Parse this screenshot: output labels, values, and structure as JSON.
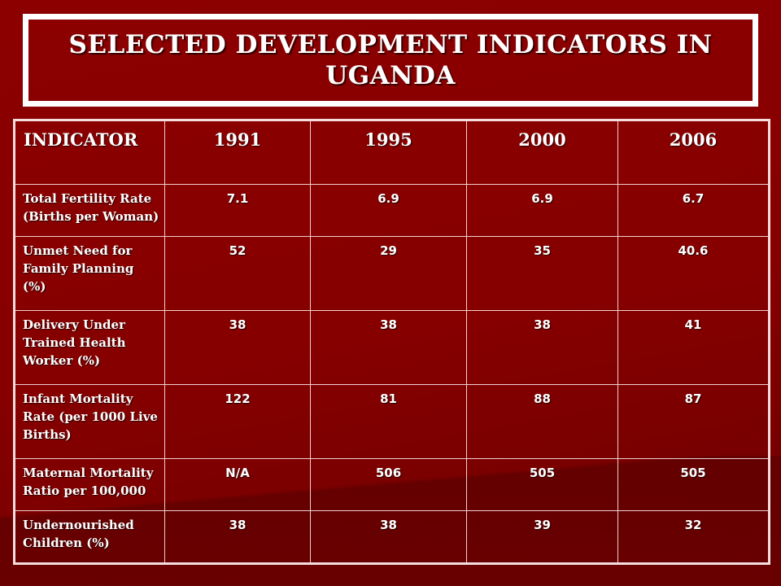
{
  "title": "SELECTED DEVELOPMENT INDICATORS IN UGANDA",
  "table": {
    "headers": [
      "INDICATOR",
      "1991",
      "1995",
      "2000",
      "2006"
    ],
    "rows": [
      {
        "label": "Total Fertility Rate (Births per Woman)",
        "values": [
          "7.1",
          "6.9",
          "6.9",
          "6.7"
        ]
      },
      {
        "label": "Unmet Need for Family Planning (%)",
        "values": [
          "52",
          "29",
          "35",
          "40.6"
        ]
      },
      {
        "label": "Delivery Under Trained Health Worker (%)",
        "values": [
          "38",
          "38",
          "38",
          "41"
        ]
      },
      {
        "label": "Infant Mortality Rate (per 1000 Live Births)",
        "values": [
          "122",
          "81",
          "88",
          "87"
        ]
      },
      {
        "label": "Maternal Mortality Ratio per 100,000",
        "values": [
          "N/A",
          "506",
          "505",
          "505"
        ]
      },
      {
        "label": "Undernourished Children (%)",
        "values": [
          "38",
          "38",
          "39",
          "32"
        ]
      }
    ]
  },
  "colors": {
    "background": "#8a0000",
    "border": "#ffffff",
    "text": "#ffffff"
  }
}
